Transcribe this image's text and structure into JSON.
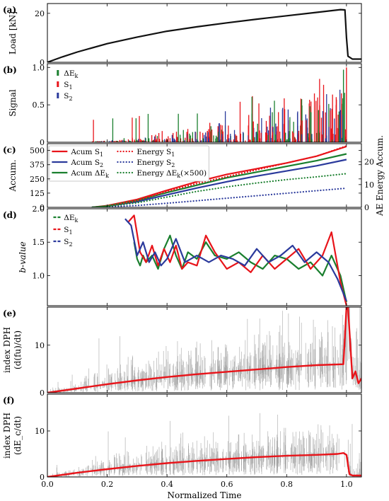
{
  "colors": {
    "red": "#e8141a",
    "blue": "#2b3a9c",
    "green": "#1a7f2e",
    "black": "#111111",
    "gray": "#8c8c8c"
  },
  "x_axis": {
    "label": "Normalized Time",
    "ticks": [
      "0.0",
      "0.2",
      "0.4",
      "0.6",
      "0.8",
      "1.0"
    ],
    "range": [
      0,
      1.05
    ]
  },
  "chart_data": [
    {
      "panel": "(a)",
      "type": "line",
      "ylabel": "Load [kN]",
      "ylim": [
        0,
        24
      ],
      "yticks": [
        "0",
        "20"
      ],
      "series": [
        {
          "color": "black",
          "x": [
            0,
            0.05,
            0.1,
            0.2,
            0.3,
            0.4,
            0.5,
            0.6,
            0.7,
            0.8,
            0.9,
            0.98,
            0.995,
            1.0,
            1.005,
            1.02,
            1.05
          ],
          "y": [
            0,
            2.2,
            4.2,
            7.6,
            10.3,
            12.7,
            14.5,
            16.1,
            17.6,
            19.0,
            20.4,
            21.5,
            21.4,
            10,
            2.5,
            1.3,
            1.3
          ]
        }
      ]
    },
    {
      "panel": "(b)",
      "type": "bar",
      "ylabel": "Signal",
      "ylim": [
        0,
        1.05
      ],
      "yticks": [
        "0",
        "0.5",
        "1.0"
      ],
      "legend": [
        {
          "label": "ΔE",
          "sub": "k",
          "color": "green"
        },
        {
          "label": "S",
          "sub": "1",
          "color": "red"
        },
        {
          "label": "S",
          "sub": "2",
          "color": "blue"
        }
      ],
      "spikes": {
        "x_start": 0.15,
        "x_end": 1.0,
        "count": 420
      }
    },
    {
      "panel": "(c)",
      "type": "line",
      "ylabel": "Accum.",
      "ylabel_right": "AE Energy Accum.",
      "ylim": [
        0,
        560
      ],
      "yticks": [
        "0",
        "125",
        "250",
        "375",
        "500"
      ],
      "ylim_right": [
        0,
        28
      ],
      "yticks_right": [
        "0",
        "10",
        "20"
      ],
      "legend": [
        {
          "label": "Acum S",
          "sub": "1",
          "color": "red",
          "dotted": false
        },
        {
          "label": "Acum S",
          "sub": "2",
          "color": "blue",
          "dotted": false
        },
        {
          "label": "Acum ΔE",
          "sub": "k",
          "color": "green",
          "dotted": false
        },
        {
          "label": "Energy S",
          "sub": "1",
          "color": "red",
          "dotted": true
        },
        {
          "label": "Energy S",
          "sub": "2",
          "color": "blue",
          "dotted": true
        },
        {
          "label": "Energy ΔE",
          "sub": "k",
          "suffix": "(×500)",
          "color": "green",
          "dotted": true
        }
      ],
      "series": [
        {
          "name": "Acum S1",
          "color": "red",
          "axis": "left",
          "dotted": false,
          "x": [
            0.15,
            0.2,
            0.3,
            0.4,
            0.5,
            0.6,
            0.7,
            0.8,
            0.9,
            1.0
          ],
          "y": [
            0,
            15,
            70,
            150,
            225,
            290,
            340,
            390,
            450,
            535
          ]
        },
        {
          "name": "Acum S2",
          "color": "blue",
          "axis": "left",
          "dotted": false,
          "x": [
            0.15,
            0.2,
            0.3,
            0.4,
            0.5,
            0.6,
            0.7,
            0.8,
            0.9,
            1.0
          ],
          "y": [
            0,
            10,
            50,
            110,
            170,
            225,
            275,
            320,
            365,
            420
          ]
        },
        {
          "name": "Acum ΔEk",
          "color": "green",
          "axis": "left",
          "dotted": false,
          "x": [
            0.15,
            0.2,
            0.3,
            0.4,
            0.5,
            0.6,
            0.7,
            0.8,
            0.9,
            1.0
          ],
          "y": [
            0,
            12,
            60,
            130,
            195,
            260,
            310,
            360,
            410,
            470
          ]
        },
        {
          "name": "Energy S1",
          "color": "red",
          "axis": "right",
          "dotted": true,
          "x": [
            0.15,
            0.2,
            0.3,
            0.4,
            0.5,
            0.6,
            0.7,
            0.8,
            0.9,
            1.0
          ],
          "y": [
            0,
            0.5,
            3,
            7,
            10.5,
            13.5,
            16.5,
            19.5,
            22.5,
            27
          ]
        },
        {
          "name": "Energy S2",
          "color": "blue",
          "axis": "right",
          "dotted": true,
          "x": [
            0.15,
            0.2,
            0.3,
            0.4,
            0.5,
            0.6,
            0.7,
            0.8,
            0.9,
            1.0
          ],
          "y": [
            0,
            0.2,
            0.8,
            1.8,
            2.9,
            4.0,
            5.1,
            6.2,
            7.3,
            8.4
          ]
        },
        {
          "name": "Energy ΔEk (×500)",
          "color": "green",
          "axis": "right",
          "dotted": true,
          "x": [
            0.15,
            0.2,
            0.3,
            0.4,
            0.5,
            0.6,
            0.7,
            0.8,
            0.9,
            1.0
          ],
          "y": [
            0,
            0.4,
            2,
            4.5,
            7,
            9,
            10.7,
            12.2,
            13.4,
            14.8
          ]
        }
      ]
    },
    {
      "panel": "(d)",
      "type": "line",
      "ylabel": "b-value",
      "ylim": [
        0.55,
        2.0
      ],
      "yticks": [
        "1.0",
        "1.5",
        "2.0"
      ],
      "legend": [
        {
          "label": "ΔE",
          "sub": "k",
          "color": "green"
        },
        {
          "label": "S",
          "sub": "1",
          "color": "red"
        },
        {
          "label": "S",
          "sub": "2",
          "color": "blue"
        }
      ],
      "series": [
        {
          "name": "ΔEk",
          "color": "green",
          "x": [
            0.29,
            0.3,
            0.31,
            0.32,
            0.33,
            0.35,
            0.37,
            0.39,
            0.41,
            0.43,
            0.45,
            0.47,
            0.5,
            0.53,
            0.56,
            0.6,
            0.64,
            0.68,
            0.72,
            0.76,
            0.8,
            0.84,
            0.88,
            0.92,
            0.95,
            0.98,
            1.0
          ],
          "y": [
            1.5,
            1.25,
            1.15,
            1.3,
            1.2,
            1.3,
            1.1,
            1.4,
            1.6,
            1.3,
            1.1,
            1.35,
            1.25,
            1.5,
            1.3,
            1.25,
            1.35,
            1.2,
            1.1,
            1.3,
            1.25,
            1.1,
            1.2,
            1.0,
            1.3,
            1.0,
            0.6
          ]
        },
        {
          "name": "S1",
          "color": "red",
          "x": [
            0.27,
            0.29,
            0.31,
            0.33,
            0.35,
            0.37,
            0.39,
            0.41,
            0.43,
            0.45,
            0.47,
            0.5,
            0.53,
            0.56,
            0.6,
            0.64,
            0.68,
            0.72,
            0.76,
            0.8,
            0.84,
            0.88,
            0.92,
            0.95,
            0.98,
            1.0
          ],
          "y": [
            1.8,
            1.9,
            1.35,
            1.2,
            1.45,
            1.15,
            1.4,
            1.2,
            1.45,
            1.1,
            1.2,
            1.15,
            1.6,
            1.35,
            1.1,
            1.2,
            1.05,
            1.3,
            1.1,
            1.25,
            1.4,
            1.1,
            1.3,
            1.65,
            0.9,
            0.55
          ]
        },
        {
          "name": "S2",
          "color": "blue",
          "x": [
            0.26,
            0.28,
            0.3,
            0.32,
            0.34,
            0.36,
            0.38,
            0.4,
            0.43,
            0.46,
            0.5,
            0.54,
            0.58,
            0.62,
            0.66,
            0.7,
            0.74,
            0.78,
            0.82,
            0.86,
            0.9,
            0.94,
            0.97,
            1.0
          ],
          "y": [
            1.85,
            1.75,
            1.3,
            1.5,
            1.2,
            1.35,
            1.15,
            1.25,
            1.55,
            1.2,
            1.3,
            1.2,
            1.3,
            1.25,
            1.15,
            1.4,
            1.2,
            1.3,
            1.45,
            1.2,
            1.35,
            1.2,
            0.95,
            0.62
          ]
        }
      ]
    },
    {
      "panel": "(e)",
      "type": "line",
      "ylabel": "index DPH",
      "ylabel2": "(d(fu)/dt)",
      "ylim": [
        0,
        18
      ],
      "yticks": [
        "0",
        "10"
      ],
      "series": [
        {
          "name": "trend",
          "color": "red",
          "x": [
            0,
            0.1,
            0.2,
            0.3,
            0.4,
            0.5,
            0.6,
            0.7,
            0.8,
            0.9,
            0.99,
            1.0,
            1.005,
            1.02,
            1.03,
            1.04,
            1.05
          ],
          "y": [
            0,
            0.9,
            1.8,
            2.6,
            3.3,
            3.9,
            4.4,
            4.9,
            5.4,
            5.8,
            6.0,
            18,
            18,
            3,
            4.5,
            2.0,
            3.0
          ]
        }
      ],
      "noise": {
        "x_start": 0.0,
        "x_end": 1.05
      }
    },
    {
      "panel": "(f)",
      "type": "line",
      "ylabel": "index DPH",
      "ylabel2": "(dE_c/dt)",
      "ylim": [
        0,
        18
      ],
      "yticks": [
        "0",
        "10"
      ],
      "series": [
        {
          "name": "trend",
          "color": "red",
          "x": [
            0,
            0.1,
            0.2,
            0.3,
            0.4,
            0.5,
            0.6,
            0.7,
            0.8,
            0.9,
            0.97,
            0.99,
            1.0,
            1.01,
            1.02,
            1.05
          ],
          "y": [
            0,
            0.9,
            1.7,
            2.4,
            3.0,
            3.5,
            3.9,
            4.3,
            4.6,
            4.8,
            5.0,
            5.2,
            4.8,
            0.6,
            0.3,
            0.3
          ]
        }
      ],
      "noise": {
        "x_start": 0.0,
        "x_end": 1.05
      }
    }
  ]
}
